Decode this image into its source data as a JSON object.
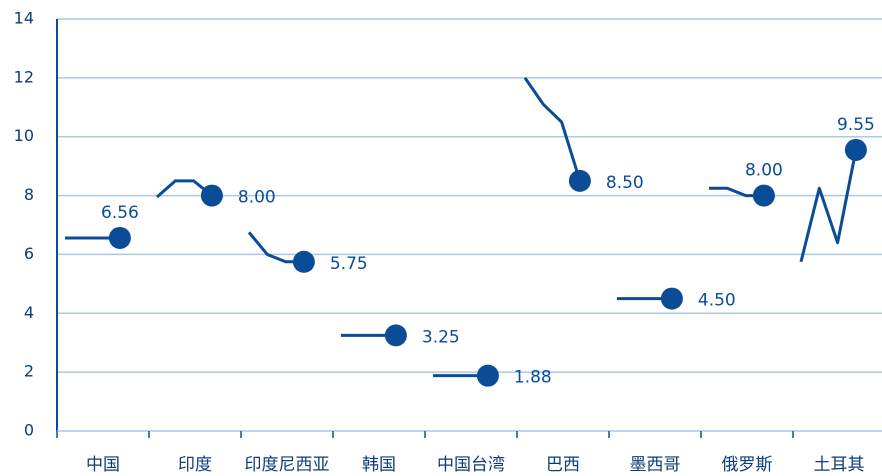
{
  "chart_data": {
    "type": "line",
    "color": "#0b4c97",
    "grid": true,
    "ylim": [
      0,
      14
    ],
    "yticks": [
      0,
      2,
      4,
      6,
      8,
      10,
      12,
      14
    ],
    "series": [
      {
        "name": "中国",
        "values": [
          6.56,
          6.56,
          6.56,
          6.56
        ],
        "value_labels": [
          null,
          null,
          null,
          "6.56"
        ]
      },
      {
        "name": "印度",
        "values": [
          7.95,
          8.5,
          8.5,
          8.0
        ],
        "value_labels": [
          null,
          null,
          null,
          "8.00"
        ]
      },
      {
        "name": "印度尼西亚",
        "values": [
          6.75,
          6.0,
          5.75,
          5.75
        ],
        "value_labels": [
          null,
          null,
          null,
          "5.75"
        ]
      },
      {
        "name": "韩国",
        "values": [
          3.25,
          3.25,
          3.25,
          3.25
        ],
        "value_labels": [
          null,
          null,
          null,
          "3.25"
        ]
      },
      {
        "name": "中国台湾",
        "values": [
          1.88,
          1.88,
          1.88,
          1.88
        ],
        "value_labels": [
          null,
          null,
          null,
          "1.88"
        ]
      },
      {
        "name": "巴西",
        "values": [
          12.0,
          11.1,
          10.5,
          8.5
        ],
        "value_labels": [
          null,
          null,
          null,
          "8.50"
        ]
      },
      {
        "name": "墨西哥",
        "values": [
          4.5,
          4.5,
          4.5,
          4.5
        ],
        "value_labels": [
          null,
          null,
          null,
          "4.50"
        ]
      },
      {
        "name": "俄罗斯",
        "values": [
          8.25,
          8.25,
          8.0,
          8.0
        ],
        "value_labels": [
          null,
          null,
          null,
          "8.00"
        ]
      },
      {
        "name": "土耳其",
        "values": [
          5.75,
          8.25,
          6.4,
          9.55
        ],
        "value_labels": [
          null,
          null,
          null,
          "9.55"
        ]
      }
    ]
  }
}
